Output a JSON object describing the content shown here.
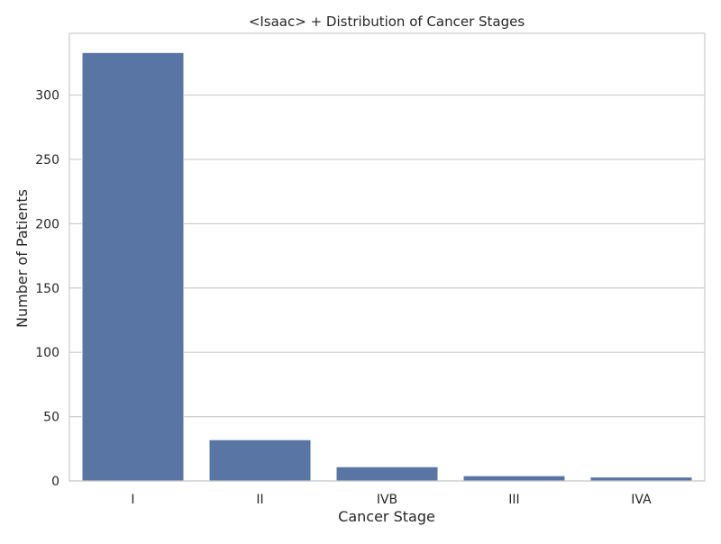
{
  "chart_data": {
    "type": "bar",
    "title": "<Isaac> + Distribution of Cancer Stages",
    "xlabel": "Cancer Stage",
    "ylabel": "Number of Patients",
    "categories": [
      "I",
      "II",
      "IVB",
      "III",
      "IVA"
    ],
    "values": [
      333,
      32,
      11,
      4,
      3
    ],
    "ylim": [
      0,
      348
    ],
    "yticks": [
      0,
      50,
      100,
      150,
      200,
      250,
      300
    ],
    "grid": true,
    "bar_color": "#5975a4",
    "grid_color": "#cccccc",
    "frame_color": "#cccccc"
  }
}
